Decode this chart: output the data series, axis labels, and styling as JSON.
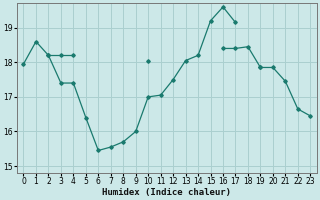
{
  "xlabel": "Humidex (Indice chaleur)",
  "xlim": [
    -0.5,
    23.5
  ],
  "ylim": [
    14.8,
    19.7
  ],
  "yticks": [
    15,
    16,
    17,
    18,
    19
  ],
  "xticks": [
    0,
    1,
    2,
    3,
    4,
    5,
    6,
    7,
    8,
    9,
    10,
    11,
    12,
    13,
    14,
    15,
    16,
    17,
    18,
    19,
    20,
    21,
    22,
    23
  ],
  "bg_color": "#cce8e8",
  "grid_color": "#aacfcf",
  "line_color": "#1a7a6e",
  "lines": [
    {
      "x": [
        0,
        1,
        2,
        3,
        4,
        5,
        6,
        7,
        8,
        9,
        10,
        11,
        12,
        13,
        14,
        15,
        16,
        17
      ],
      "y": [
        17.95,
        18.6,
        18.2,
        17.4,
        17.4,
        16.4,
        15.45,
        15.55,
        15.7,
        16.0,
        17.0,
        17.05,
        17.5,
        18.05,
        18.2,
        19.2,
        19.6,
        19.15
      ]
    },
    {
      "x": [
        2,
        3,
        4
      ],
      "y": [
        18.2,
        18.2,
        18.2
      ]
    },
    {
      "x": [
        10
      ],
      "y": [
        18.05
      ]
    },
    {
      "x": [
        16,
        17,
        18,
        19
      ],
      "y": [
        18.4,
        18.4,
        18.45,
        17.85
      ]
    },
    {
      "x": [
        19,
        20,
        21,
        22,
        23
      ],
      "y": [
        17.85,
        17.85,
        17.45,
        16.65,
        16.45
      ]
    }
  ]
}
